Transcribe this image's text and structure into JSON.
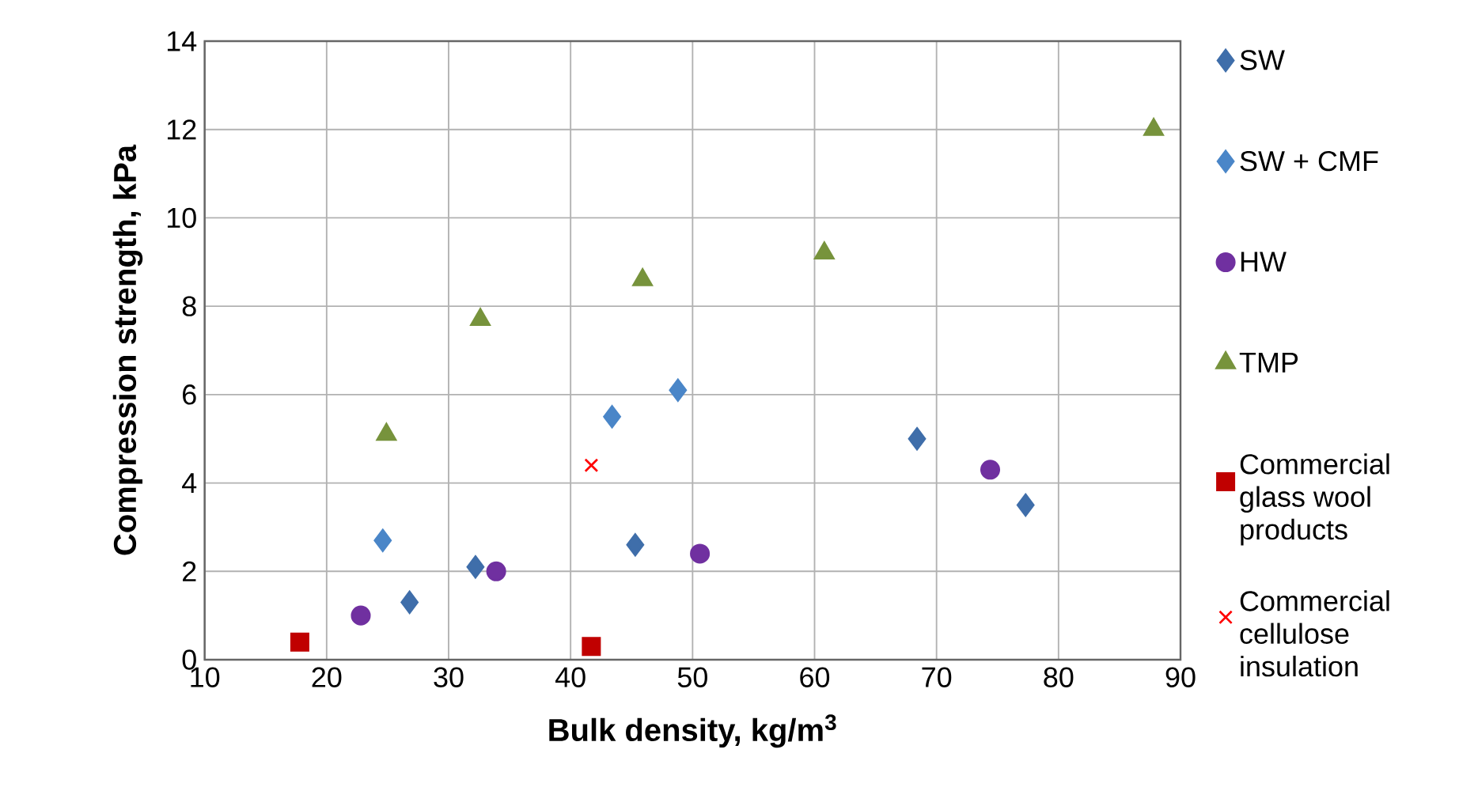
{
  "chart_data": {
    "type": "scatter",
    "xlabel": "Bulk density, kg/m$^{3}$",
    "ylabel": "Compression strength, kPa",
    "xlim": [
      10,
      90
    ],
    "xticks": [
      10,
      20,
      30,
      40,
      50,
      60,
      70,
      80,
      90
    ],
    "ylim": [
      0,
      14
    ],
    "yticks": [
      0,
      2,
      4,
      6,
      8,
      10,
      12,
      14
    ],
    "grid": true,
    "legend": "right",
    "series": [
      {
        "name": "SW",
        "color": "#3f6eaa",
        "marker": "diamond",
        "x": [
          26.8,
          32.2,
          45.3,
          68.4,
          77.3
        ],
        "values": [
          1.3,
          2.1,
          2.6,
          5.0,
          3.5
        ]
      },
      {
        "name": "SW + CMF",
        "color": "#4a86c8",
        "marker": "diamond",
        "x": [
          24.6,
          43.4,
          48.8
        ],
        "values": [
          2.7,
          5.5,
          6.1
        ]
      },
      {
        "name": "HW",
        "color": "#7030a0",
        "marker": "circle",
        "x": [
          22.8,
          33.9,
          50.6,
          74.4
        ],
        "values": [
          1.0,
          2.0,
          2.4,
          4.3
        ]
      },
      {
        "name": "TMP",
        "color": "#77933c",
        "marker": "triangle",
        "x": [
          24.9,
          32.6,
          45.9,
          60.8,
          87.8
        ],
        "values": [
          5.1,
          7.7,
          8.6,
          9.2,
          12.0
        ]
      },
      {
        "name": "Commercial glass wool products",
        "color": "#c00000",
        "marker": "square",
        "x": [
          17.8,
          41.7
        ],
        "values": [
          0.4,
          0.3
        ]
      },
      {
        "name": "Commercial cellulose insulation",
        "color": "#ff0000",
        "marker": "cross",
        "x": [
          41.7
        ],
        "values": [
          4.4
        ]
      }
    ]
  }
}
